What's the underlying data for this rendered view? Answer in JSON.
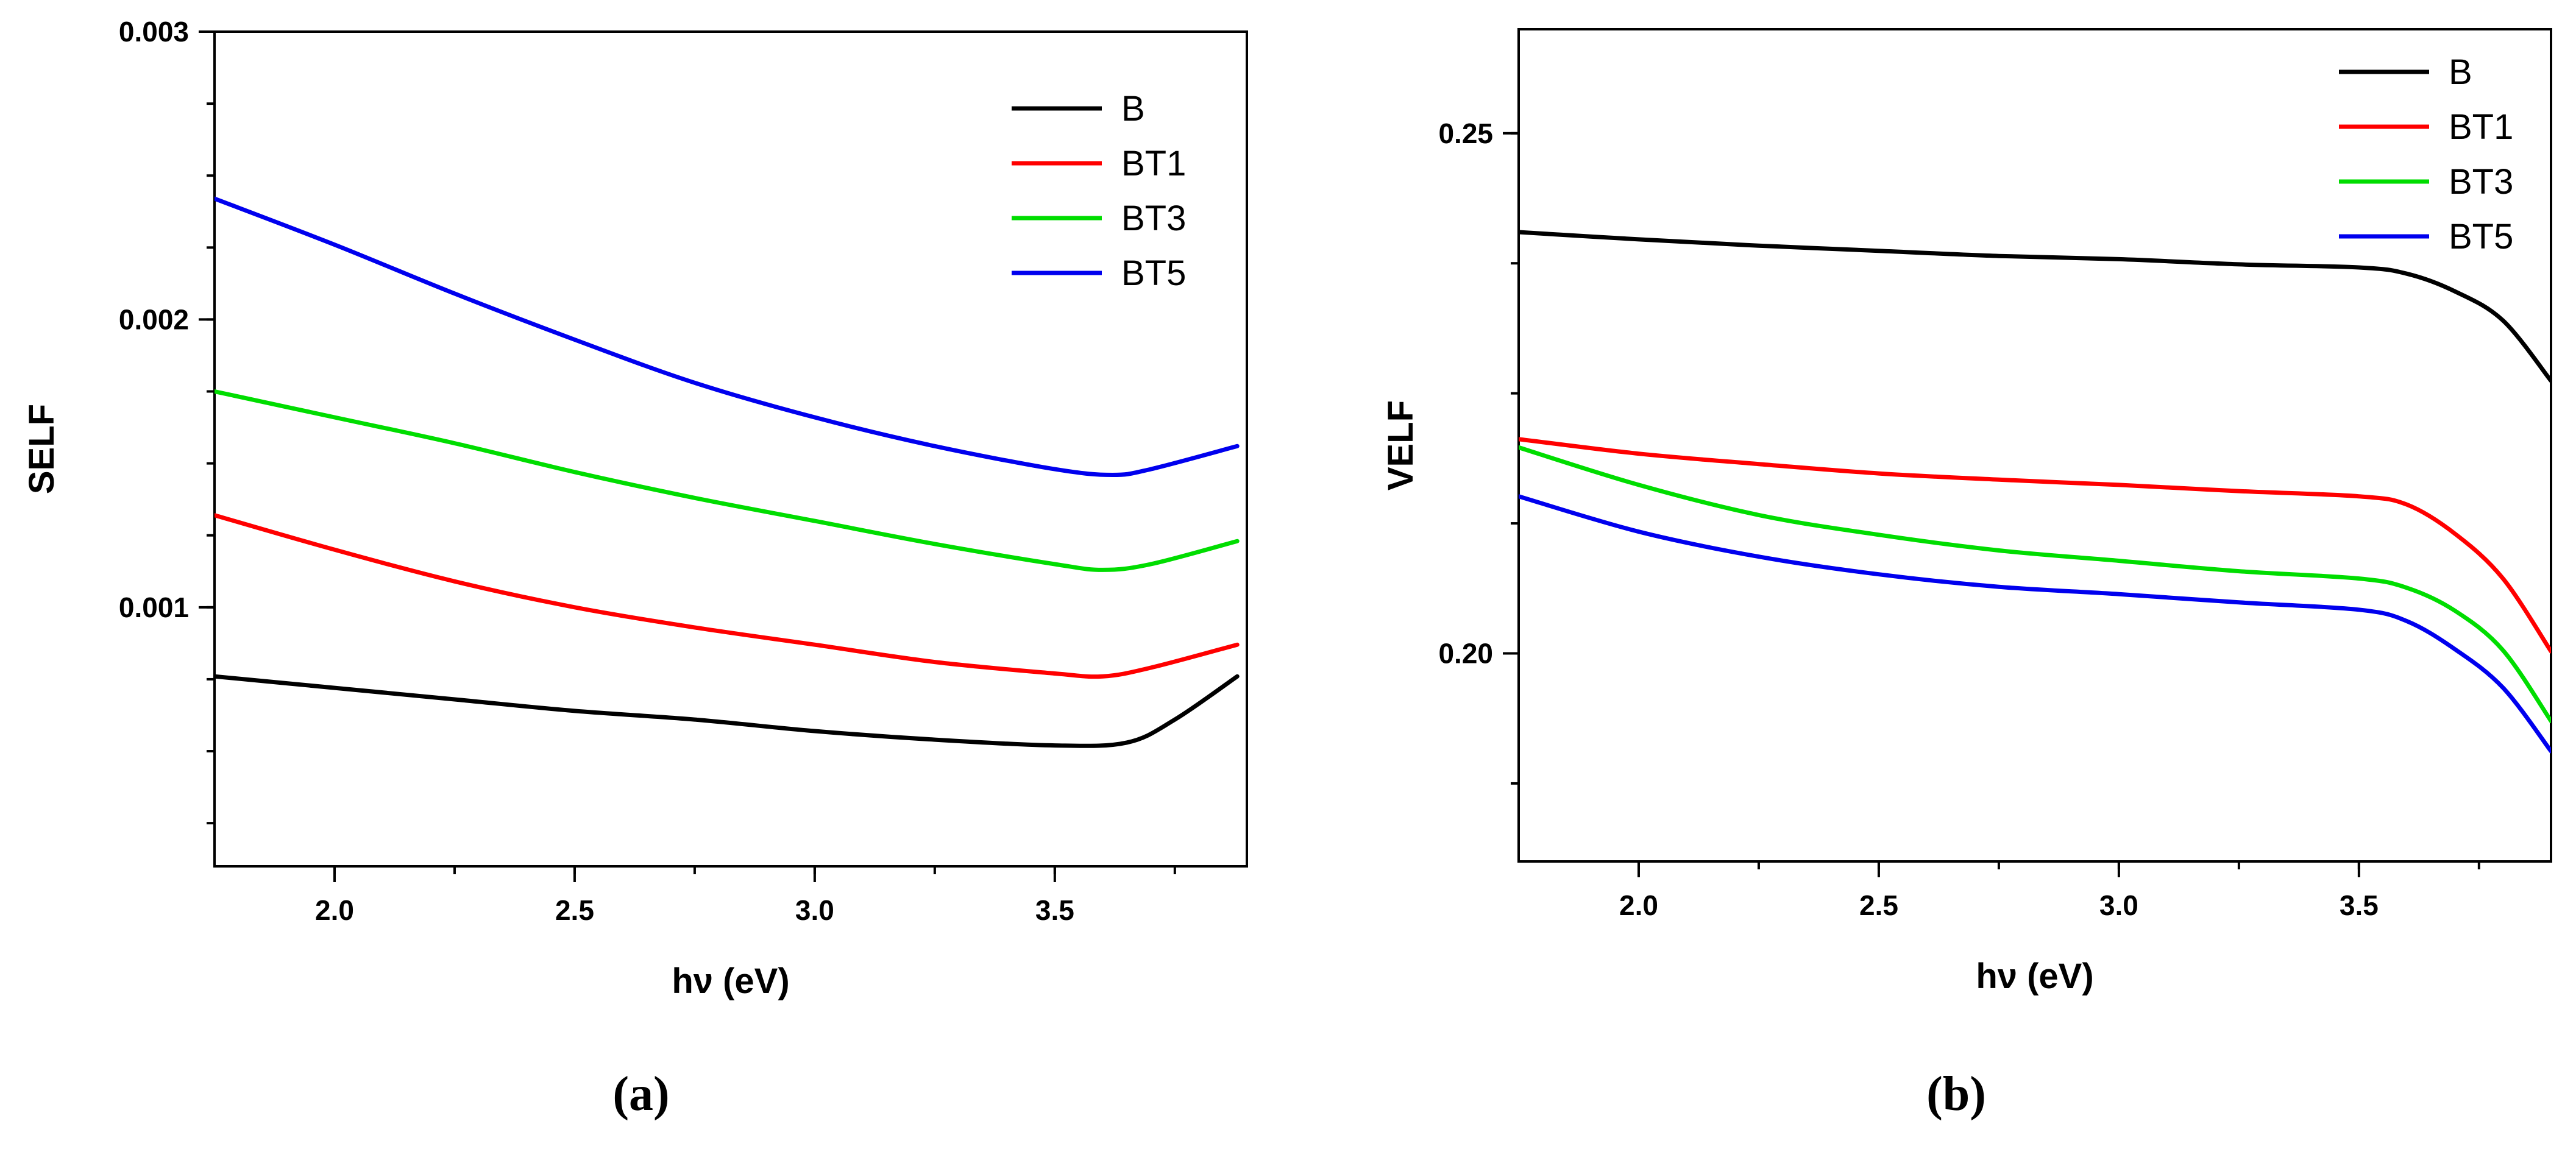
{
  "chart_data": [
    {
      "type": "line",
      "caption": "(a)",
      "xlabel": "hν (eV)",
      "ylabel": "SELF",
      "xlim": [
        1.75,
        3.9
      ],
      "ylim": [
        0.0001,
        0.003
      ],
      "x_ticks": [
        "2.0",
        "2.5",
        "3.0",
        "3.5"
      ],
      "y_ticks": [
        "0.001",
        "0.002",
        "0.003"
      ],
      "legend_position": "top-right",
      "series": [
        {
          "name": "B",
          "color": "#000000",
          "x": [
            1.75,
            2.0,
            2.25,
            2.5,
            2.75,
            3.0,
            3.25,
            3.5,
            3.65,
            3.75,
            3.88
          ],
          "y": [
            0.00076,
            0.00072,
            0.00068,
            0.00064,
            0.00061,
            0.00057,
            0.00054,
            0.00052,
            0.00053,
            0.00061,
            0.00076
          ]
        },
        {
          "name": "BT1",
          "color": "#ff0000",
          "x": [
            1.75,
            2.0,
            2.25,
            2.5,
            2.75,
            3.0,
            3.25,
            3.5,
            3.6,
            3.7,
            3.88
          ],
          "y": [
            0.00132,
            0.0012,
            0.00109,
            0.001,
            0.00093,
            0.00087,
            0.00081,
            0.00077,
            0.00076,
            0.00079,
            0.00087
          ]
        },
        {
          "name": "BT3",
          "color": "#00dd00",
          "x": [
            1.75,
            2.0,
            2.25,
            2.5,
            2.75,
            3.0,
            3.25,
            3.5,
            3.6,
            3.7,
            3.88
          ],
          "y": [
            0.00175,
            0.00166,
            0.00157,
            0.00147,
            0.00138,
            0.0013,
            0.00122,
            0.00115,
            0.00113,
            0.00115,
            0.00123
          ]
        },
        {
          "name": "BT5",
          "color": "#0000ee",
          "x": [
            1.75,
            2.0,
            2.25,
            2.5,
            2.75,
            3.0,
            3.25,
            3.5,
            3.62,
            3.7,
            3.88
          ],
          "y": [
            0.00242,
            0.00226,
            0.00209,
            0.00193,
            0.00178,
            0.00166,
            0.00156,
            0.00148,
            0.00146,
            0.00148,
            0.00156
          ]
        }
      ]
    },
    {
      "type": "line",
      "caption": "(b)",
      "xlabel": "hν (eV)",
      "ylabel": "VELF",
      "xlim": [
        1.75,
        3.9
      ],
      "ylim": [
        0.18,
        0.26
      ],
      "x_ticks": [
        "2.0",
        "2.5",
        "3.0",
        "3.5"
      ],
      "y_ticks": [
        "0.20",
        "0.25"
      ],
      "legend_position": "top-right",
      "series": [
        {
          "name": "B",
          "color": "#000000",
          "x": [
            1.75,
            2.0,
            2.25,
            2.5,
            2.75,
            3.0,
            3.25,
            3.5,
            3.6,
            3.7,
            3.8,
            3.9
          ],
          "y": [
            0.2405,
            0.2398,
            0.2392,
            0.2387,
            0.2382,
            0.2379,
            0.2374,
            0.2371,
            0.2365,
            0.2348,
            0.232,
            0.2262
          ]
        },
        {
          "name": "BT1",
          "color": "#ff0000",
          "x": [
            1.75,
            2.0,
            2.25,
            2.5,
            2.75,
            3.0,
            3.25,
            3.5,
            3.6,
            3.7,
            3.8,
            3.9
          ],
          "y": [
            0.2206,
            0.2192,
            0.2182,
            0.2173,
            0.2167,
            0.2162,
            0.2156,
            0.2151,
            0.2143,
            0.2115,
            0.2072,
            0.2002
          ]
        },
        {
          "name": "BT3",
          "color": "#00dd00",
          "x": [
            1.75,
            2.0,
            2.25,
            2.5,
            2.75,
            3.0,
            3.25,
            3.5,
            3.6,
            3.7,
            3.8,
            3.9
          ],
          "y": [
            0.2198,
            0.2162,
            0.2133,
            0.2114,
            0.2099,
            0.2089,
            0.2079,
            0.2072,
            0.2063,
            0.2041,
            0.2003,
            0.1935
          ]
        },
        {
          "name": "BT5",
          "color": "#0000ee",
          "x": [
            1.75,
            2.0,
            2.25,
            2.5,
            2.75,
            3.0,
            3.25,
            3.5,
            3.6,
            3.7,
            3.8,
            3.9
          ],
          "y": [
            0.2151,
            0.2117,
            0.2093,
            0.2076,
            0.2064,
            0.2057,
            0.2049,
            0.2042,
            0.2031,
            0.2004,
            0.1967,
            0.1906
          ]
        }
      ]
    }
  ]
}
